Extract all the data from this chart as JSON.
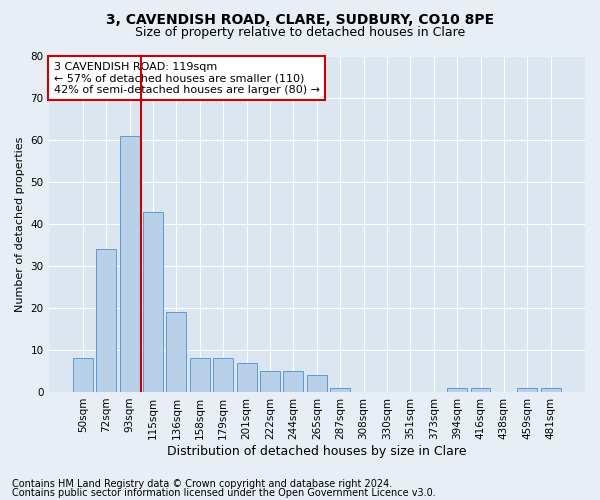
{
  "title1": "3, CAVENDISH ROAD, CLARE, SUDBURY, CO10 8PE",
  "title2": "Size of property relative to detached houses in Clare",
  "xlabel": "Distribution of detached houses by size in Clare",
  "ylabel": "Number of detached properties",
  "categories": [
    "50sqm",
    "72sqm",
    "93sqm",
    "115sqm",
    "136sqm",
    "158sqm",
    "179sqm",
    "201sqm",
    "222sqm",
    "244sqm",
    "265sqm",
    "287sqm",
    "308sqm",
    "330sqm",
    "351sqm",
    "373sqm",
    "394sqm",
    "416sqm",
    "438sqm",
    "459sqm",
    "481sqm"
  ],
  "values": [
    8,
    34,
    61,
    43,
    19,
    8,
    8,
    7,
    5,
    5,
    4,
    1,
    0,
    0,
    0,
    0,
    1,
    1,
    0,
    1,
    1
  ],
  "bar_color": "#b8d0e8",
  "bar_edge_color": "#5b9bd5",
  "vline_x": 2.5,
  "vline_color": "#cc0000",
  "annotation_text": "3 CAVENDISH ROAD: 119sqm\n← 57% of detached houses are smaller (110)\n42% of semi-detached houses are larger (80) →",
  "annotation_box_color": "#ffffff",
  "annotation_box_edge": "#cc0000",
  "footer1": "Contains HM Land Registry data © Crown copyright and database right 2024.",
  "footer2": "Contains public sector information licensed under the Open Government Licence v3.0.",
  "ylim": [
    0,
    80
  ],
  "yticks": [
    0,
    10,
    20,
    30,
    40,
    50,
    60,
    70,
    80
  ],
  "background_color": "#e8eef5",
  "plot_bg_color": "#dce6f0",
  "grid_color": "#ffffff",
  "title1_fontsize": 10,
  "title2_fontsize": 9,
  "xlabel_fontsize": 9,
  "ylabel_fontsize": 8,
  "tick_fontsize": 7.5,
  "footer_fontsize": 7,
  "ann_fontsize": 8
}
